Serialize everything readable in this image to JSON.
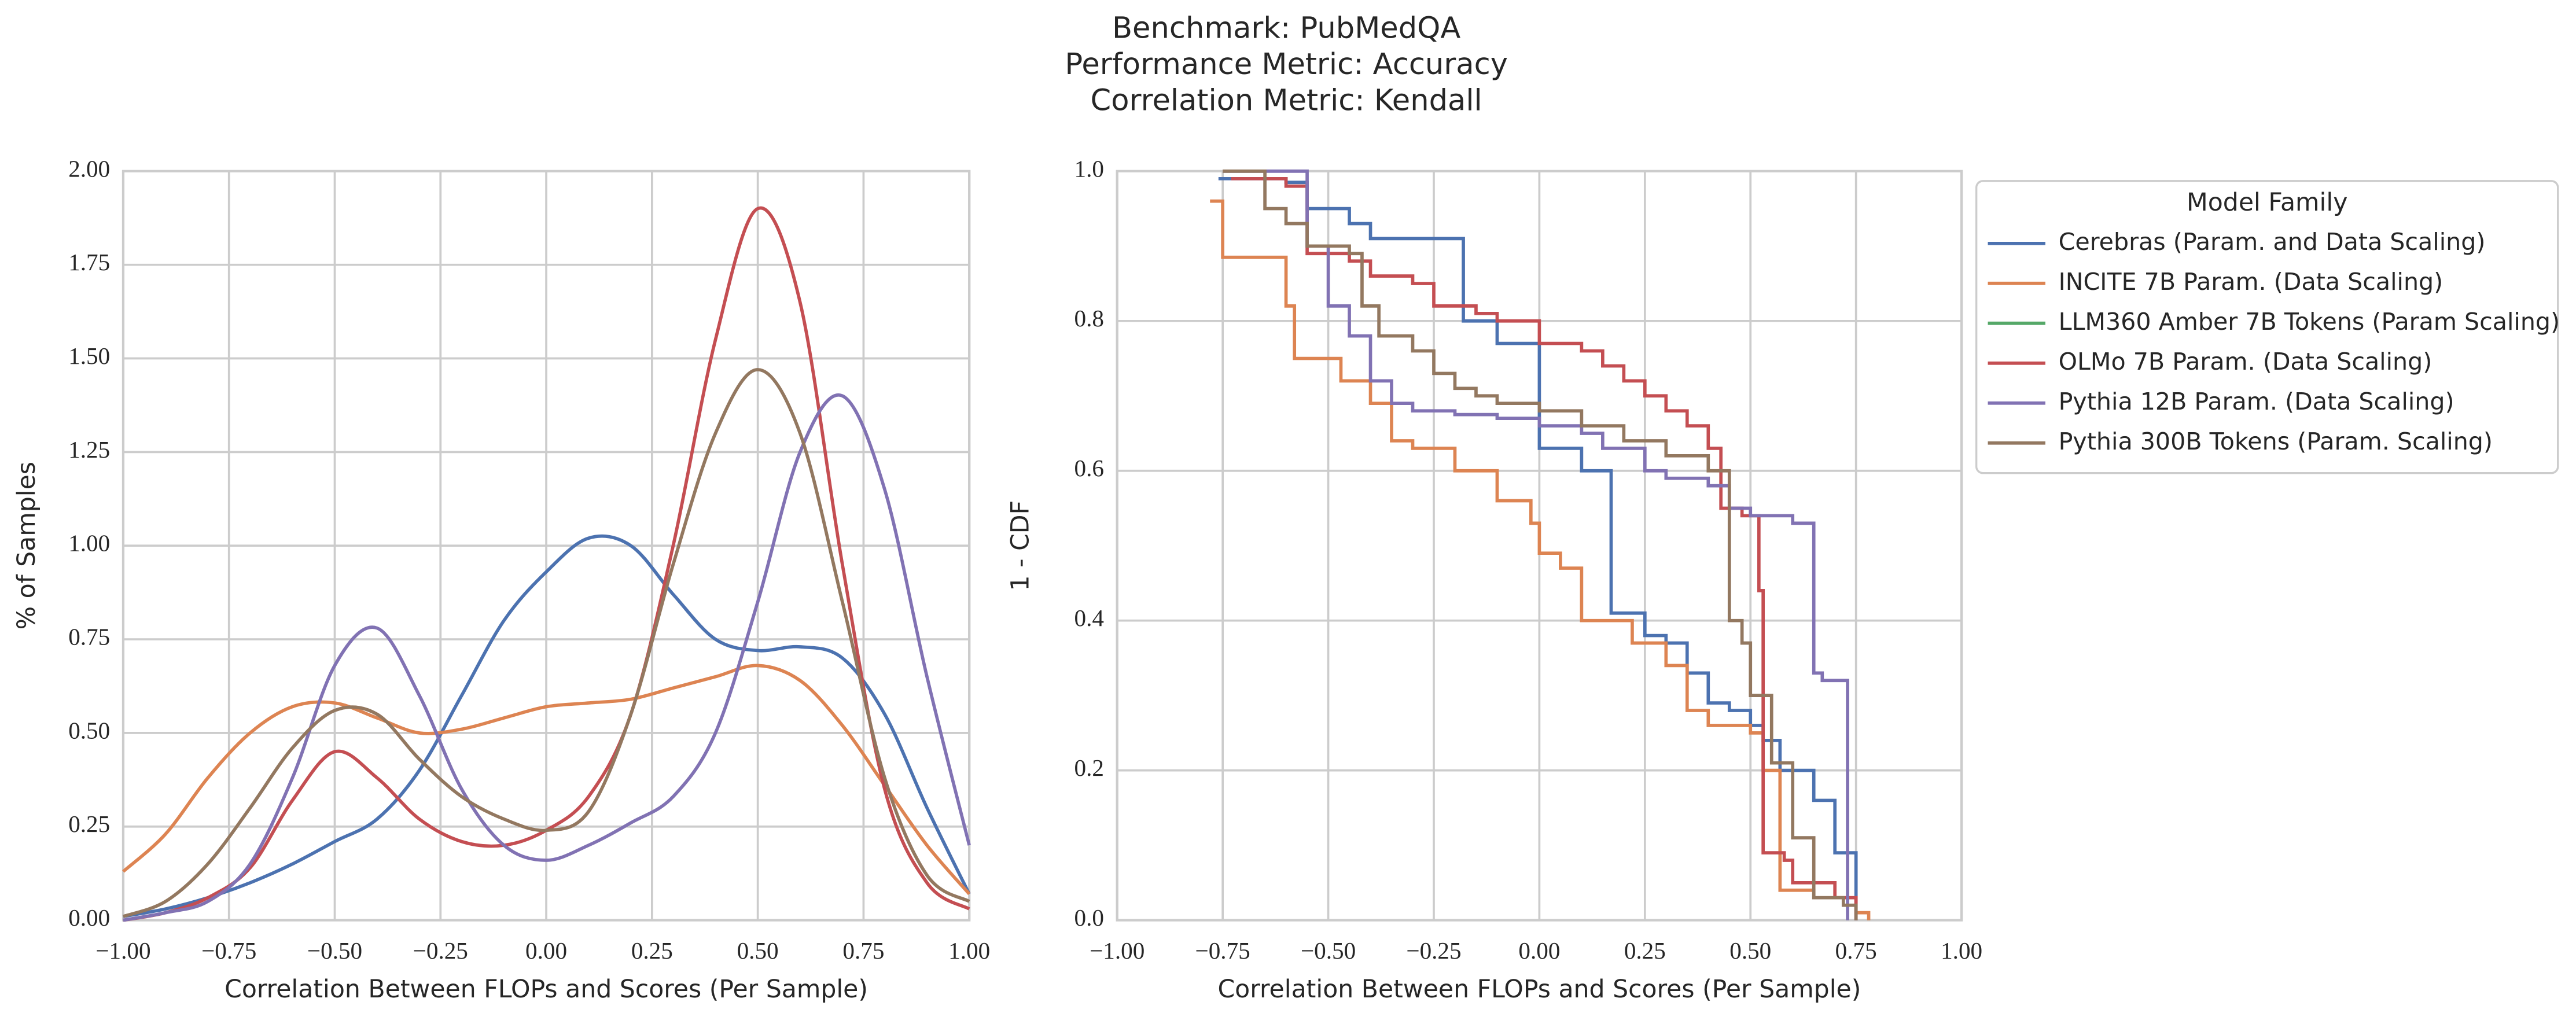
{
  "title": [
    "Benchmark: PubMedQA",
    "Performance Metric: Accuracy",
    "Correlation Metric: Kendall"
  ],
  "chart_data": [
    {
      "type": "line",
      "xlabel": "Correlation Between FLOPs and Scores (Per Sample)",
      "ylabel": "% of Samples",
      "grid": true,
      "x": [
        -1,
        -0.9,
        -0.8,
        -0.7,
        -0.6,
        -0.5,
        -0.4,
        -0.3,
        -0.2,
        -0.1,
        0,
        0.1,
        0.2,
        0.3,
        0.4,
        0.5,
        0.6,
        0.7,
        0.8,
        0.9,
        1
      ],
      "xlim": [
        -1,
        1
      ],
      "ylim": [
        0,
        2
      ],
      "xticks": [
        {
          "value": -1,
          "label": "−1.00"
        },
        {
          "value": -0.75,
          "label": "−0.75"
        },
        {
          "value": -0.5,
          "label": "−0.50"
        },
        {
          "value": -0.25,
          "label": "−0.25"
        },
        {
          "value": 0,
          "label": "0.00"
        },
        {
          "value": 0.25,
          "label": "0.25"
        },
        {
          "value": 0.5,
          "label": "0.50"
        },
        {
          "value": 0.75,
          "label": "0.75"
        },
        {
          "value": 1,
          "label": "1.00"
        }
      ],
      "yticks": [
        {
          "value": 0,
          "label": "0.00"
        },
        {
          "value": 0.25,
          "label": "0.25"
        },
        {
          "value": 0.5,
          "label": "0.50"
        },
        {
          "value": 0.75,
          "label": "0.75"
        },
        {
          "value": 1,
          "label": "1.00"
        },
        {
          "value": 1.25,
          "label": "1.25"
        },
        {
          "value": 1.5,
          "label": "1.50"
        },
        {
          "value": 1.75,
          "label": "1.75"
        },
        {
          "value": 2,
          "label": "2.00"
        }
      ],
      "series": [
        {
          "name": "Cerebras (Param. and Data Scaling)",
          "color": "#4c72b0",
          "values": [
            0.01,
            0.03,
            0.06,
            0.1,
            0.15,
            0.21,
            0.27,
            0.4,
            0.6,
            0.8,
            0.93,
            1.02,
            1.0,
            0.87,
            0.75,
            0.72,
            0.73,
            0.7,
            0.55,
            0.3,
            0.07
          ]
        },
        {
          "name": "INCITE 7B Param. (Data Scaling)",
          "color": "#dd8452",
          "values": [
            0.13,
            0.23,
            0.38,
            0.5,
            0.57,
            0.58,
            0.54,
            0.5,
            0.51,
            0.54,
            0.57,
            0.58,
            0.59,
            0.62,
            0.65,
            0.68,
            0.64,
            0.52,
            0.36,
            0.2,
            0.07
          ]
        },
        {
          "name": "LLM360 Amber 7B Tokens (Param Scaling)",
          "color": "#55a868",
          "values": [
            null,
            null,
            null,
            null,
            null,
            null,
            null,
            null,
            null,
            null,
            null,
            null,
            null,
            null,
            null,
            null,
            null,
            null,
            null,
            null,
            null
          ]
        },
        {
          "name": "OLMo 7B Param. (Data Scaling)",
          "color": "#c44e52",
          "values": [
            0.0,
            0.02,
            0.06,
            0.14,
            0.32,
            0.45,
            0.38,
            0.27,
            0.21,
            0.2,
            0.24,
            0.33,
            0.55,
            1.0,
            1.55,
            1.9,
            1.65,
            0.95,
            0.35,
            0.1,
            0.03
          ]
        },
        {
          "name": "Pythia 12B Param. (Data Scaling)",
          "color": "#8172b3",
          "values": [
            0.0,
            0.02,
            0.05,
            0.15,
            0.38,
            0.68,
            0.78,
            0.6,
            0.35,
            0.2,
            0.16,
            0.2,
            0.26,
            0.33,
            0.5,
            0.85,
            1.25,
            1.4,
            1.15,
            0.65,
            0.2
          ]
        },
        {
          "name": "Pythia 300B Tokens (Param. Scaling)",
          "color": "#937860",
          "values": [
            0.01,
            0.05,
            0.15,
            0.3,
            0.46,
            0.56,
            0.55,
            0.43,
            0.33,
            0.27,
            0.24,
            0.29,
            0.55,
            0.95,
            1.3,
            1.47,
            1.3,
            0.85,
            0.38,
            0.12,
            0.05
          ]
        }
      ]
    },
    {
      "type": "step",
      "xlabel": "Correlation Between FLOPs and Scores (Per Sample)",
      "ylabel": "1 - CDF",
      "grid": true,
      "legend_title": "Model Family",
      "legend": "outside right",
      "xlim": [
        -1,
        1
      ],
      "ylim": [
        0,
        1
      ],
      "xticks": [
        {
          "value": -1,
          "label": "−1.00"
        },
        {
          "value": -0.75,
          "label": "−0.75"
        },
        {
          "value": -0.5,
          "label": "−0.50"
        },
        {
          "value": -0.25,
          "label": "−0.25"
        },
        {
          "value": 0,
          "label": "0.00"
        },
        {
          "value": 0.25,
          "label": "0.25"
        },
        {
          "value": 0.5,
          "label": "0.50"
        },
        {
          "value": 0.75,
          "label": "0.75"
        },
        {
          "value": 1,
          "label": "1.00"
        }
      ],
      "yticks": [
        {
          "value": 0,
          "label": "0.0"
        },
        {
          "value": 0.2,
          "label": "0.2"
        },
        {
          "value": 0.4,
          "label": "0.4"
        },
        {
          "value": 0.6,
          "label": "0.6"
        },
        {
          "value": 0.8,
          "label": "0.8"
        },
        {
          "value": 1,
          "label": "1.0"
        }
      ],
      "series": [
        {
          "name": "Cerebras (Param. and Data Scaling)",
          "color": "#4c72b0",
          "x": [
            -0.76,
            -0.6,
            -0.55,
            -0.45,
            -0.4,
            -0.18,
            -0.1,
            0,
            0.1,
            0.17,
            0.25,
            0.3,
            0.35,
            0.4,
            0.45,
            0.5,
            0.53,
            0.57,
            0.65,
            0.7,
            0.75
          ],
          "values": [
            0.99,
            0.985,
            0.95,
            0.93,
            0.91,
            0.8,
            0.77,
            0.63,
            0.6,
            0.41,
            0.38,
            0.37,
            0.33,
            0.29,
            0.28,
            0.26,
            0.24,
            0.2,
            0.16,
            0.09,
            0.0
          ]
        },
        {
          "name": "INCITE 7B Param. (Data Scaling)",
          "color": "#dd8452",
          "x": [
            -0.78,
            -0.75,
            -0.6,
            -0.58,
            -0.47,
            -0.4,
            -0.35,
            -0.3,
            -0.2,
            -0.1,
            -0.02,
            0,
            0.05,
            0.1,
            0.22,
            0.3,
            0.35,
            0.4,
            0.5,
            0.53,
            0.57,
            0.65,
            0.75,
            0.78
          ],
          "values": [
            0.96,
            0.885,
            0.82,
            0.75,
            0.72,
            0.69,
            0.64,
            0.63,
            0.6,
            0.56,
            0.53,
            0.49,
            0.47,
            0.4,
            0.37,
            0.34,
            0.28,
            0.26,
            0.25,
            0.2,
            0.04,
            0.03,
            0.01,
            0.0
          ]
        },
        {
          "name": "LLM360 Amber 7B Tokens (Param Scaling)",
          "color": "#55a868",
          "x": [],
          "values": []
        },
        {
          "name": "OLMo 7B Param. (Data Scaling)",
          "color": "#c44e52",
          "x": [
            -0.73,
            -0.6,
            -0.55,
            -0.45,
            -0.4,
            -0.3,
            -0.25,
            -0.15,
            -0.1,
            0,
            0.1,
            0.15,
            0.2,
            0.25,
            0.3,
            0.35,
            0.4,
            0.43,
            0.48,
            0.52,
            0.53,
            0.58,
            0.6,
            0.7,
            0.75
          ],
          "values": [
            0.99,
            0.98,
            0.89,
            0.88,
            0.86,
            0.85,
            0.82,
            0.81,
            0.8,
            0.77,
            0.76,
            0.74,
            0.72,
            0.7,
            0.68,
            0.66,
            0.63,
            0.55,
            0.54,
            0.44,
            0.09,
            0.08,
            0.05,
            0.03,
            0.0
          ]
        },
        {
          "name": "Pythia 12B Param. (Data Scaling)",
          "color": "#8172b3",
          "x": [
            -0.75,
            -0.55,
            -0.5,
            -0.45,
            -0.4,
            -0.35,
            -0.3,
            -0.2,
            -0.1,
            0,
            0.1,
            0.15,
            0.25,
            0.3,
            0.4,
            0.45,
            0.5,
            0.6,
            0.65,
            0.67,
            0.73
          ],
          "values": [
            1.0,
            0.9,
            0.82,
            0.78,
            0.72,
            0.69,
            0.68,
            0.675,
            0.67,
            0.66,
            0.65,
            0.63,
            0.6,
            0.59,
            0.58,
            0.55,
            0.54,
            0.53,
            0.33,
            0.32,
            0.0
          ]
        },
        {
          "name": "Pythia 300B Tokens (Param. Scaling)",
          "color": "#937860",
          "x": [
            -0.75,
            -0.65,
            -0.6,
            -0.55,
            -0.45,
            -0.42,
            -0.38,
            -0.3,
            -0.25,
            -0.2,
            -0.15,
            -0.1,
            0,
            0.1,
            0.2,
            0.3,
            0.4,
            0.45,
            0.48,
            0.5,
            0.55,
            0.6,
            0.65,
            0.72,
            0.75
          ],
          "values": [
            1.0,
            0.95,
            0.93,
            0.9,
            0.89,
            0.82,
            0.78,
            0.76,
            0.73,
            0.71,
            0.7,
            0.69,
            0.68,
            0.66,
            0.64,
            0.62,
            0.6,
            0.4,
            0.37,
            0.3,
            0.21,
            0.11,
            0.03,
            0.02,
            0.0
          ]
        }
      ]
    }
  ]
}
